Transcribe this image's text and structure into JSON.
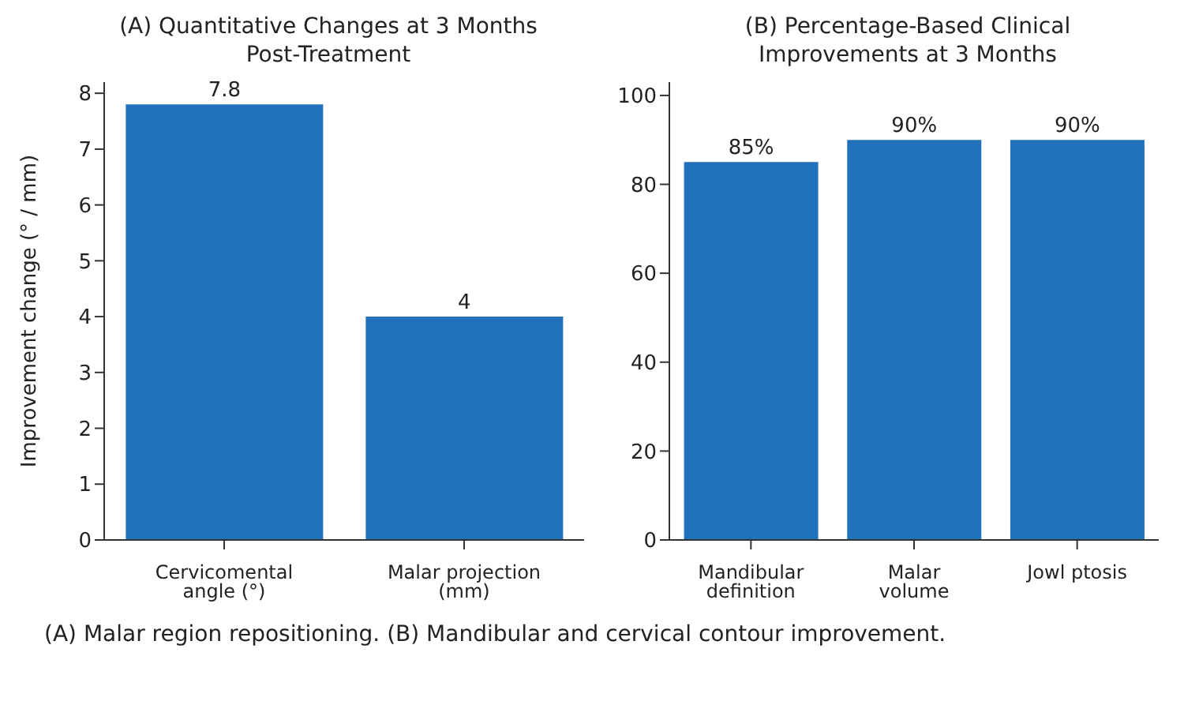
{
  "chart_data": [
    {
      "type": "bar",
      "title": "(A) Quantitative Changes at 3 Months Post-Treatment",
      "ylabel": "Improvement change (° / mm)",
      "categories": [
        "Cervicomental angle (°)",
        "Malar projection (mm)"
      ],
      "values": [
        7.8,
        4
      ],
      "color": "#2171bc",
      "ylim": [
        0,
        8.2
      ],
      "yticks": [
        0,
        1,
        2,
        3,
        4,
        5,
        6,
        7,
        8
      ],
      "data_labels": true,
      "annotations": [
        "(A) Malar region repositioning. (B) Mandibular and cervical contour improvement."
      ]
    },
    {
      "type": "bar",
      "title": "(B) Percentage-Based Clinical Improvements at 3 Months",
      "categories": [
        "Mandibular definition",
        "Malar volume",
        "Jowl ptosis"
      ],
      "values": [
        85,
        90,
        90
      ],
      "color": "#2171bc",
      "ylim": [
        0,
        103
      ],
      "yticks": [
        0,
        20,
        40,
        60,
        80,
        100
      ],
      "value_labels": [
        "85%",
        "90%",
        "90%"
      ]
    }
  ]
}
